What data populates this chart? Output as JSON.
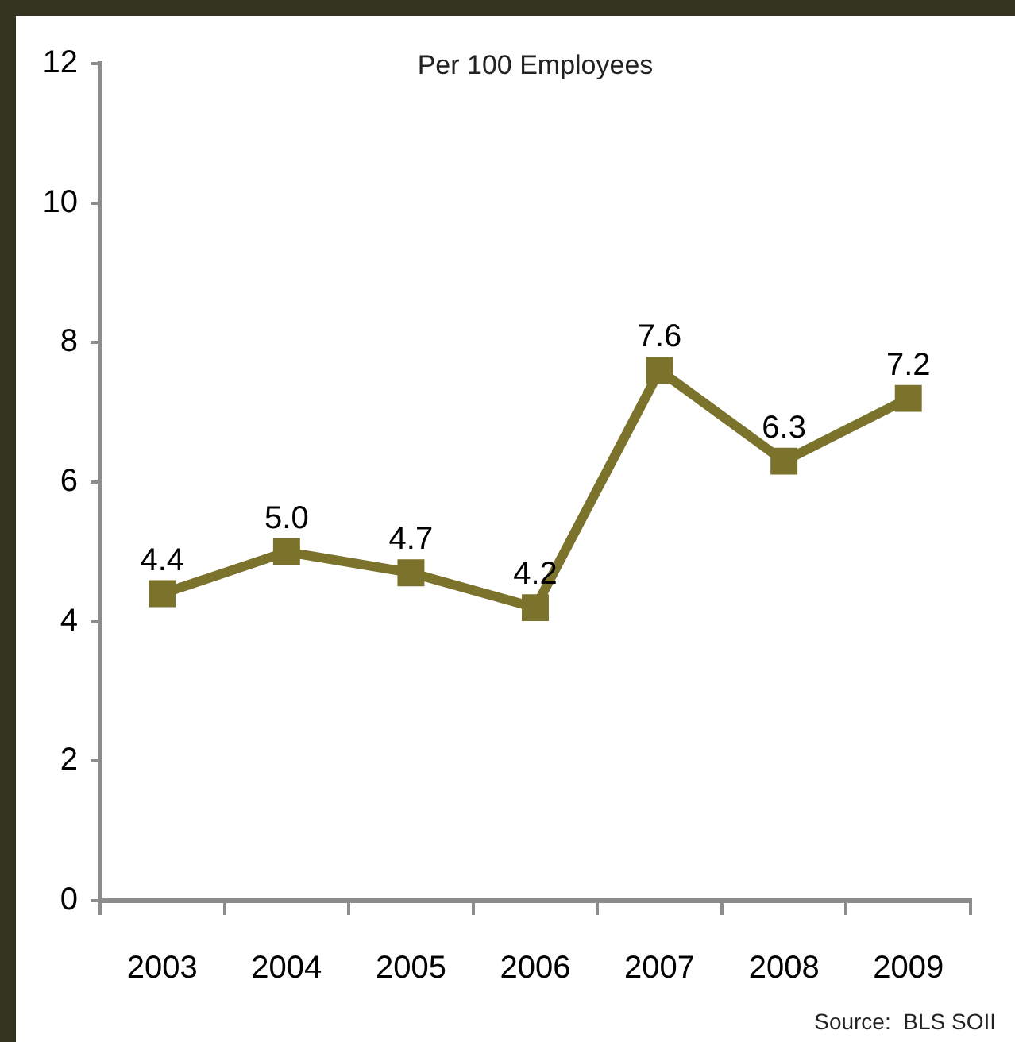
{
  "chart_data": {
    "type": "line",
    "title": "Per 100 Employees",
    "categories": [
      "2003",
      "2004",
      "2005",
      "2006",
      "2007",
      "2008",
      "2009"
    ],
    "values": [
      4.4,
      5.0,
      4.7,
      4.2,
      7.6,
      6.3,
      7.2
    ],
    "color": "#7b722c",
    "value_labels": [
      "4.4",
      "5.0",
      "4.7",
      "4.2",
      "7.6",
      "6.3",
      "7.2"
    ],
    "ylim": [
      0,
      12
    ],
    "yticks": [
      0,
      2,
      4,
      6,
      8,
      10,
      12
    ],
    "marker": "square",
    "line_style": "solid",
    "annotations": [
      "Source:  BLS SOII"
    ]
  }
}
